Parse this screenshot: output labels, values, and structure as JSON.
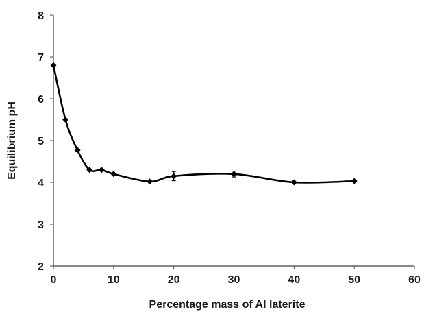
{
  "chart_data": {
    "type": "line",
    "title": "",
    "xlabel": "Percentage mass of Al laterite",
    "ylabel": "Equilibrium pH",
    "xlim": [
      0,
      60
    ],
    "ylim": [
      2,
      8
    ],
    "xticks": [
      "0",
      "10",
      "20",
      "30",
      "40",
      "50",
      "60"
    ],
    "yticks": [
      "2",
      "3",
      "4",
      "5",
      "6",
      "7",
      "8"
    ],
    "grid": false,
    "legend": "none",
    "smooth": true,
    "series": [
      {
        "color": "#000000",
        "marker": "diamond",
        "x": [
          0,
          2,
          4,
          6,
          8,
          10,
          16,
          20,
          30,
          40,
          50
        ],
        "y": [
          6.8,
          5.5,
          4.77,
          4.3,
          4.3,
          4.2,
          4.02,
          4.15,
          4.2,
          4.0,
          4.03
        ],
        "error": [
          0,
          0,
          0,
          0,
          0,
          0,
          0,
          0.11,
          0.07,
          0,
          0
        ]
      }
    ]
  }
}
